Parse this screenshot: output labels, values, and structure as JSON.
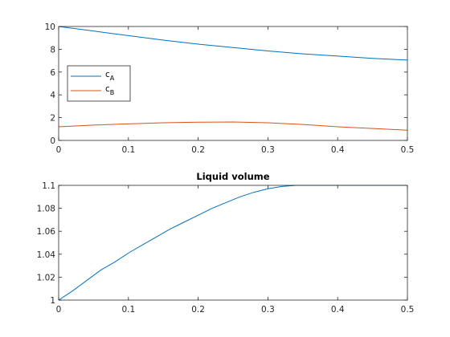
{
  "chart_data": [
    {
      "type": "line",
      "title": "",
      "xlabel": "",
      "ylabel": "",
      "xlim": [
        0,
        0.5
      ],
      "ylim": [
        0,
        10
      ],
      "x_ticks": [
        "0",
        "0.1",
        "0.2",
        "0.3",
        "0.4",
        "0.5"
      ],
      "y_ticks": [
        "0",
        "2",
        "4",
        "6",
        "8",
        "10"
      ],
      "grid": false,
      "legend": {
        "placement": "left",
        "entries": [
          {
            "main": "c",
            "sub": "A"
          },
          {
            "main": "c",
            "sub": "B"
          }
        ]
      },
      "series": [
        {
          "name": "cA",
          "color": "#0072BD",
          "x": [
            0,
            0.05,
            0.1,
            0.15,
            0.2,
            0.25,
            0.3,
            0.35,
            0.4,
            0.45,
            0.5
          ],
          "y": [
            10.0,
            9.6,
            9.2,
            8.8,
            8.45,
            8.15,
            7.85,
            7.6,
            7.4,
            7.2,
            7.05
          ]
        },
        {
          "name": "cB",
          "color": "#D95319",
          "x": [
            0,
            0.05,
            0.1,
            0.15,
            0.2,
            0.25,
            0.3,
            0.35,
            0.4,
            0.45,
            0.5
          ],
          "y": [
            1.2,
            1.35,
            1.45,
            1.55,
            1.6,
            1.62,
            1.55,
            1.4,
            1.2,
            1.05,
            0.9
          ]
        }
      ]
    },
    {
      "type": "line",
      "title": "Liquid volume",
      "xlabel": "",
      "ylabel": "",
      "xlim": [
        0,
        0.5
      ],
      "ylim": [
        1,
        1.1
      ],
      "x_ticks": [
        "0",
        "0.1",
        "0.2",
        "0.3",
        "0.4",
        "0.5"
      ],
      "y_ticks": [
        "1",
        "1.02",
        "1.04",
        "1.06",
        "1.08",
        "1.1"
      ],
      "grid": false,
      "series": [
        {
          "color": "#0072BD",
          "x": [
            0,
            0.02,
            0.04,
            0.06,
            0.08,
            0.1,
            0.12,
            0.14,
            0.16,
            0.18,
            0.2,
            0.22,
            0.24,
            0.26,
            0.28,
            0.3,
            0.32,
            0.34,
            0.35,
            0.4,
            0.45,
            0.5
          ],
          "y": [
            1.0,
            1.008,
            1.017,
            1.026,
            1.033,
            1.041,
            1.048,
            1.055,
            1.062,
            1.068,
            1.074,
            1.08,
            1.085,
            1.09,
            1.094,
            1.097,
            1.099,
            1.1,
            1.1,
            1.1,
            1.1,
            1.1
          ]
        }
      ]
    }
  ]
}
